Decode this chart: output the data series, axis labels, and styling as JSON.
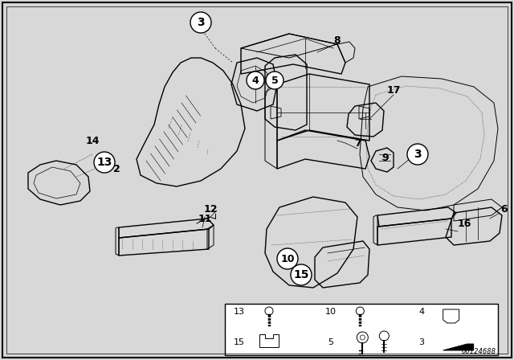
{
  "background_color": "#d8d8d8",
  "line_color": "#000000",
  "diagram_code": "00124688",
  "figsize": [
    6.4,
    4.48
  ],
  "dpi": 100,
  "border_color": "#000000",
  "white": "#ffffff",
  "gray_fill": "#c8c8c8"
}
